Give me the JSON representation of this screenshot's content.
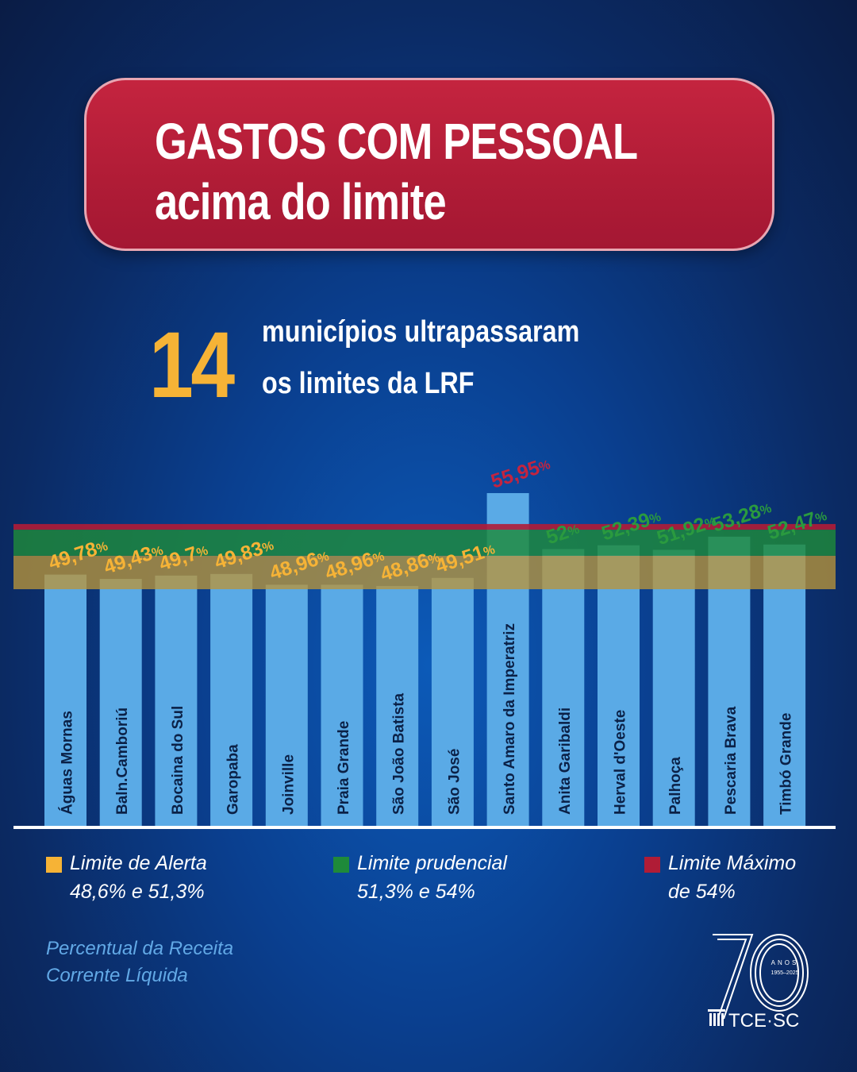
{
  "title": {
    "line1": "GASTOS COM PESSOAL",
    "line2": "acima do limite"
  },
  "highlight": {
    "count": "14",
    "line1": "municípios ultrapassaram",
    "line2": "os limites da LRF"
  },
  "colors": {
    "bar": "#5aaae6",
    "alert": "#f6b336",
    "prudential": "#1e8a3a",
    "maximum": "#b01c36",
    "alert_label": "#f6b336",
    "prudential_label": "#2a9a3f",
    "maximum_label": "#c4243f"
  },
  "chart_data": {
    "type": "bar",
    "categories": [
      "Águas Mornas",
      "Baln.Camboriú",
      "Bocaina do Sul",
      "Garopaba",
      "Joinville",
      "Praia Grande",
      "São João Batista",
      "São José",
      "Santo Amaro da Imperatriz",
      "Anita Garibaldi",
      "Herval d'Oeste",
      "Palhoça",
      "Pescaria Brava",
      "Timbó Grande"
    ],
    "values": [
      49.78,
      49.43,
      49.7,
      49.83,
      48.96,
      48.96,
      48.86,
      49.51,
      55.95,
      52,
      52.39,
      51.92,
      53.28,
      52.47
    ],
    "value_labels": [
      "49,78",
      "49,43",
      "49,7",
      "49,83",
      "48,96",
      "48,96",
      "48,86",
      "49,51",
      "55,95",
      "52",
      "52,39",
      "51,92",
      "53,28",
      "52,47"
    ],
    "unit_suffix": "%",
    "bands": [
      {
        "name": "Limite de Alerta",
        "from": 48.6,
        "to": 51.3
      },
      {
        "name": "Limite prudencial",
        "from": 51.3,
        "to": 54
      },
      {
        "name": "Limite Máximo",
        "from": 54,
        "to": 54.3
      }
    ],
    "title": "",
    "xlabel": "",
    "ylabel": ""
  },
  "legend": [
    {
      "label": "Limite de Alerta",
      "range": "48,6% e 51,3%",
      "color": "#f6b336"
    },
    {
      "label": "Limite prudencial",
      "range": "51,3% e 54%",
      "color": "#1e8a3a"
    },
    {
      "label": "Limite Máximo",
      "range": "de 54%",
      "color": "#b01c36"
    }
  ],
  "note": {
    "line1": "Percentual da Receita",
    "line2": "Corrente Líquida"
  },
  "logo": {
    "anos": "ANOS",
    "years": "1955–2025",
    "org": "TCE·SC"
  }
}
